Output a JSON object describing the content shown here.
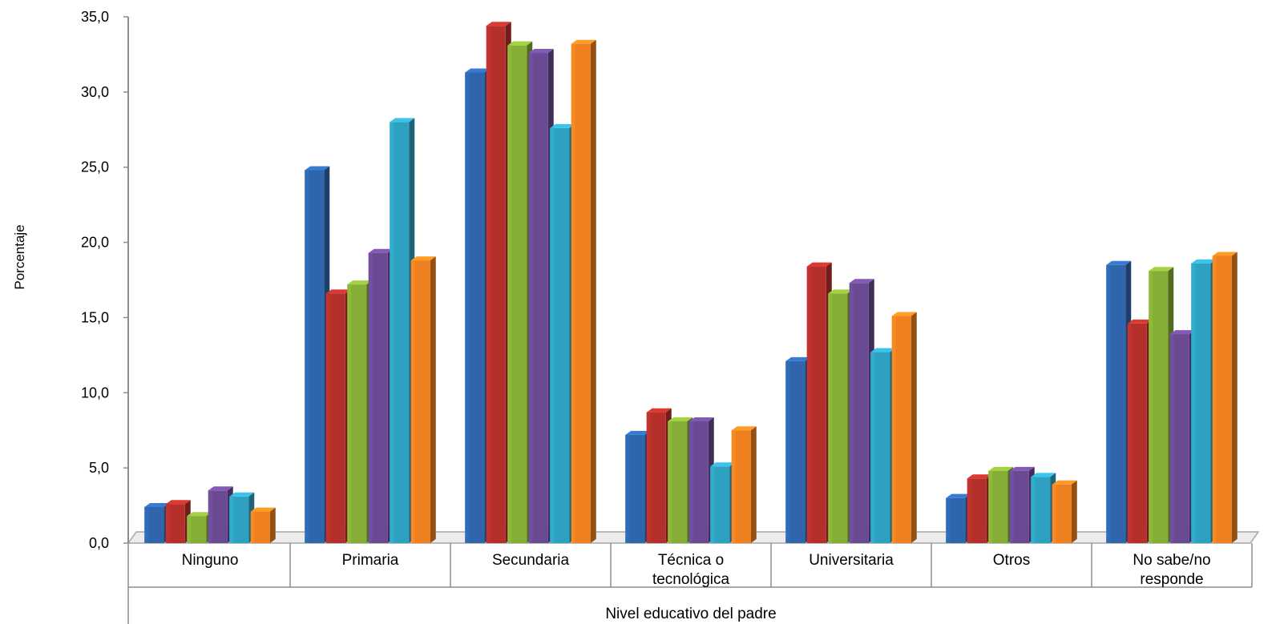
{
  "chart_data": {
    "type": "bar",
    "title": "",
    "xlabel": "Nivel educativo del padre",
    "ylabel": "Porcentaje",
    "ylim": [
      0,
      35
    ],
    "yticks": [
      "0,0",
      "5,0",
      "10,0",
      "15,0",
      "20,0",
      "25,0",
      "30,0",
      "35,0"
    ],
    "categories": [
      [
        "Ninguno"
      ],
      [
        "Primaria"
      ],
      [
        "Secundaria"
      ],
      [
        "Técnica o",
        "tecnológica"
      ],
      [
        "Universitaria"
      ],
      [
        "Otros"
      ],
      [
        "No sabe/no",
        "responde"
      ]
    ],
    "series": [
      {
        "color": "#2e65ad",
        "values": [
          2.4,
          24.8,
          31.3,
          7.2,
          12.1,
          3.0,
          18.5
        ]
      },
      {
        "color": "#b52f2b",
        "values": [
          2.6,
          16.6,
          34.4,
          8.7,
          18.4,
          4.3,
          14.6
        ]
      },
      {
        "color": "#86ad36",
        "values": [
          1.8,
          17.2,
          33.1,
          8.1,
          16.6,
          4.8,
          18.1
        ]
      },
      {
        "color": "#6b4a94",
        "values": [
          3.5,
          19.3,
          32.6,
          8.1,
          17.3,
          4.8,
          13.9
        ]
      },
      {
        "color": "#2ea1c1",
        "values": [
          3.1,
          28.0,
          27.6,
          5.1,
          12.7,
          4.4,
          18.6
        ]
      },
      {
        "color": "#ef8020",
        "values": [
          2.1,
          18.8,
          33.2,
          7.5,
          15.1,
          3.9,
          19.1
        ]
      }
    ],
    "grid": false,
    "legend": "none"
  }
}
